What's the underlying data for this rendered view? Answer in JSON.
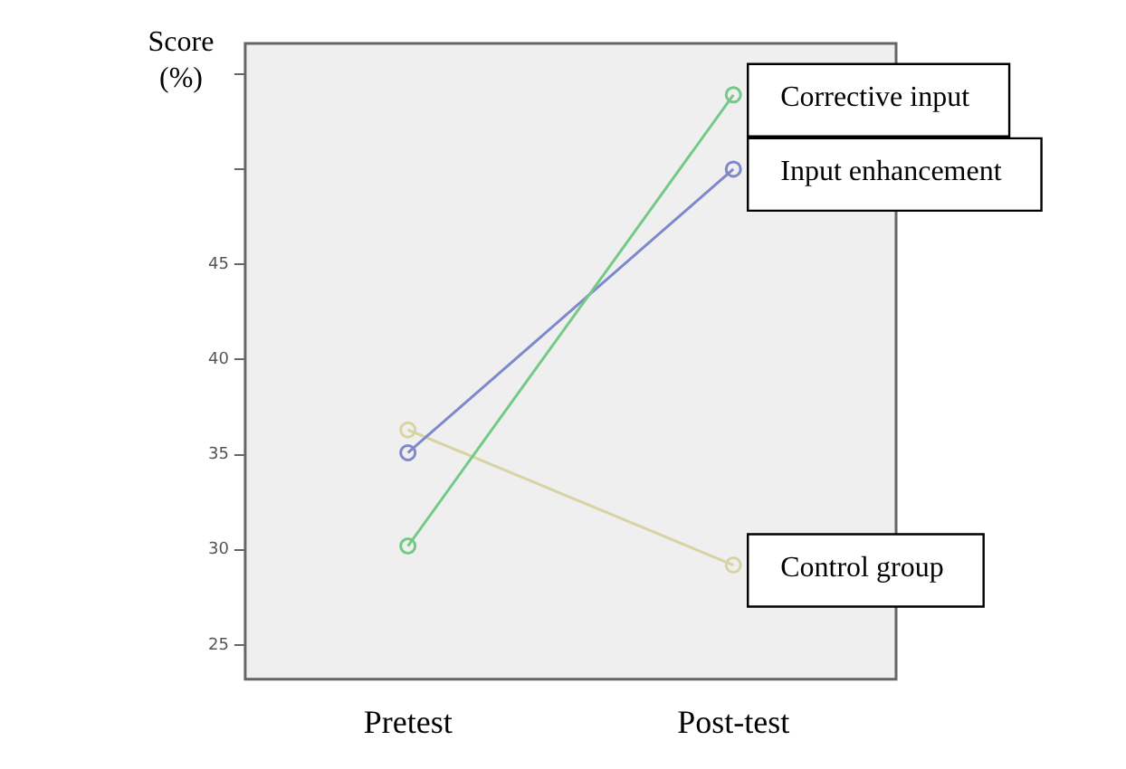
{
  "chart_data": {
    "type": "line",
    "ylabel": "Score (%)",
    "categories": [
      "Pretest",
      "Post-test"
    ],
    "series": [
      {
        "name": "Corrective input",
        "color": "#74c987",
        "values": [
          30.2,
          53.9
        ]
      },
      {
        "name": "Input enhancement",
        "color": "#7f88cc",
        "values": [
          35.1,
          50.0
        ]
      },
      {
        "name": "Control group",
        "color": "#d8d3a2",
        "values": [
          36.3,
          29.2
        ]
      }
    ],
    "ylim": [
      23.2,
      56.6
    ],
    "yticks": [
      25,
      30,
      35,
      40,
      45,
      {
        "value": 50,
        "label": null
      },
      {
        "value": 55,
        "label": null
      }
    ],
    "grid": false,
    "legend": false,
    "marker": "circle",
    "line_style": "solid"
  }
}
